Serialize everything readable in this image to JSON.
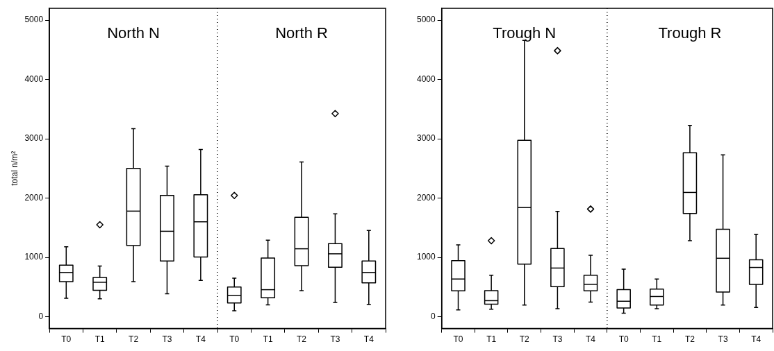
{
  "chart_data": [
    {
      "type": "box",
      "categories": [
        "T0",
        "T1",
        "T2",
        "T3",
        "T4",
        "T0",
        "T1",
        "T2",
        "T3",
        "T4"
      ],
      "ylabel": "total n/m²",
      "ylim": [
        -200,
        5200
      ],
      "yticks": [
        0,
        1000,
        2000,
        3000,
        4000,
        5000
      ],
      "grid": false,
      "legend": false,
      "marker": "diamond",
      "color": "#000000",
      "annotations": [
        "North N",
        "North R"
      ],
      "boxes": [
        {
          "low": 310,
          "q1": 590,
          "median": 745,
          "q3": 870,
          "high": 1180
        },
        {
          "low": 300,
          "q1": 445,
          "median": 580,
          "q3": 660,
          "high": 855,
          "outliers": [
            1550
          ]
        },
        {
          "low": 590,
          "q1": 1200,
          "median": 1780,
          "q3": 2500,
          "high": 3170
        },
        {
          "low": 385,
          "q1": 940,
          "median": 1440,
          "q3": 2045,
          "high": 2540
        },
        {
          "low": 610,
          "q1": 1005,
          "median": 1600,
          "q3": 2055,
          "high": 2820
        },
        {
          "low": 100,
          "q1": 230,
          "median": 360,
          "q3": 500,
          "high": 650,
          "outliers": [
            2045
          ]
        },
        {
          "low": 200,
          "q1": 320,
          "median": 455,
          "q3": 990,
          "high": 1290
        },
        {
          "low": 440,
          "q1": 860,
          "median": 1145,
          "q3": 1675,
          "high": 2610
        },
        {
          "low": 240,
          "q1": 835,
          "median": 1060,
          "q3": 1230,
          "high": 1735,
          "outliers": [
            3425
          ]
        },
        {
          "low": 205,
          "q1": 570,
          "median": 745,
          "q3": 940,
          "high": 1455
        }
      ]
    },
    {
      "type": "box",
      "categories": [
        "T0",
        "T1",
        "T2",
        "T3",
        "T4",
        "T0",
        "T1",
        "T2",
        "T3",
        "T4"
      ],
      "ylim": [
        -200,
        5200
      ],
      "yticks": [
        0,
        1000,
        2000,
        3000,
        4000,
        5000
      ],
      "grid": false,
      "legend": false,
      "marker": "diamond",
      "color": "#000000",
      "annotations": [
        "Trough N",
        "Trough R"
      ],
      "boxes": [
        {
          "low": 115,
          "q1": 435,
          "median": 635,
          "q3": 945,
          "high": 1210
        },
        {
          "low": 125,
          "q1": 210,
          "median": 270,
          "q3": 440,
          "high": 700,
          "outliers": [
            1280
          ]
        },
        {
          "low": 195,
          "q1": 885,
          "median": 1840,
          "q3": 2975,
          "high": 4660
        },
        {
          "low": 135,
          "q1": 505,
          "median": 820,
          "q3": 1150,
          "high": 1775,
          "outliers": [
            4485
          ]
        },
        {
          "low": 245,
          "q1": 435,
          "median": 545,
          "q3": 700,
          "high": 1035,
          "outliers": [
            1815
          ]
        },
        {
          "low": 60,
          "q1": 145,
          "median": 260,
          "q3": 455,
          "high": 800
        },
        {
          "low": 135,
          "q1": 195,
          "median": 340,
          "q3": 465,
          "high": 635
        },
        {
          "low": 1280,
          "q1": 1740,
          "median": 2095,
          "q3": 2765,
          "high": 3225
        },
        {
          "low": 195,
          "q1": 415,
          "median": 985,
          "q3": 1475,
          "high": 2730
        },
        {
          "low": 155,
          "q1": 545,
          "median": 830,
          "q3": 960,
          "high": 1390
        }
      ]
    }
  ]
}
